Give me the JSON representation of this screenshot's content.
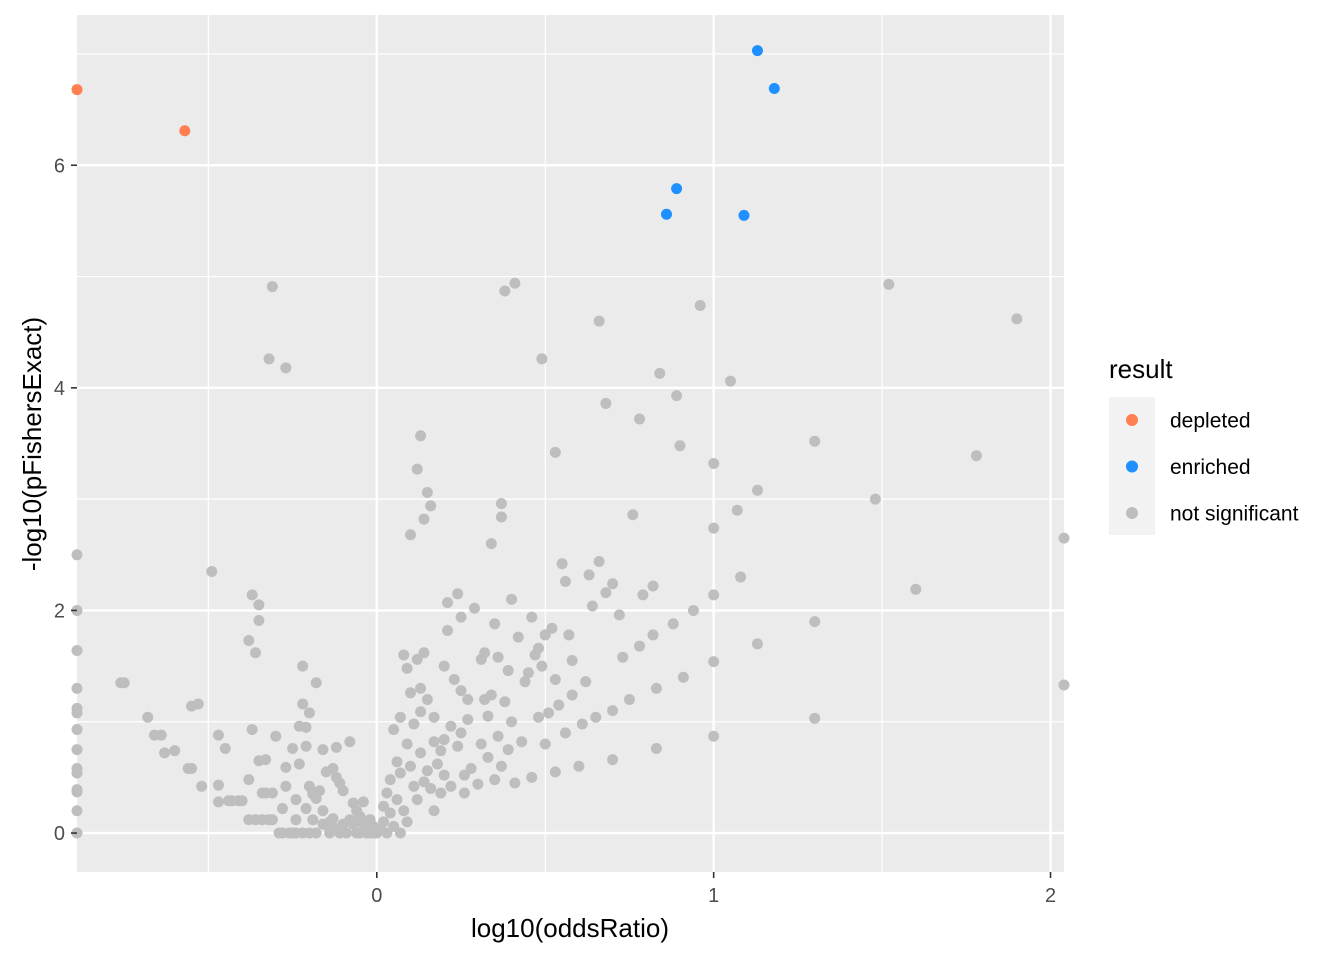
{
  "chart_data": {
    "type": "scatter",
    "title": "",
    "xlabel": "log10(oddsRatio)",
    "ylabel": "-log10(pFishersExact)",
    "xlim": [
      -0.89,
      2.04
    ],
    "ylim": [
      -0.35,
      7.35
    ],
    "x_ticks": [
      0,
      1,
      2
    ],
    "y_ticks": [
      0,
      2,
      4,
      6
    ],
    "grid": true,
    "legend_position": "right",
    "legend": {
      "title": "result",
      "entries": [
        "depleted",
        "enriched",
        "not significant"
      ]
    },
    "colors": {
      "depleted": "#ff7f50",
      "enriched": "#1e90ff",
      "not significant": "#bebebe",
      "panel_background": "#ebebeb",
      "gridline": "#ffffff"
    },
    "series": [
      {
        "name": "not significant",
        "points": [
          [
            -0.89,
            2.5
          ],
          [
            -0.89,
            2.0
          ],
          [
            -0.89,
            1.64
          ],
          [
            -0.89,
            1.3
          ],
          [
            -0.89,
            1.12
          ],
          [
            -0.89,
            1.08
          ],
          [
            -0.89,
            0.93
          ],
          [
            -0.89,
            0.75
          ],
          [
            -0.89,
            0.58
          ],
          [
            -0.89,
            0.54
          ],
          [
            -0.89,
            0.39
          ],
          [
            -0.89,
            0.37
          ],
          [
            -0.89,
            0.2
          ],
          [
            -0.89,
            0.0
          ],
          [
            -0.76,
            1.35
          ],
          [
            -0.75,
            1.35
          ],
          [
            -0.68,
            1.04
          ],
          [
            -0.66,
            0.88
          ],
          [
            -0.64,
            0.88
          ],
          [
            -0.63,
            0.72
          ],
          [
            -0.6,
            0.74
          ],
          [
            -0.56,
            0.58
          ],
          [
            -0.55,
            0.58
          ],
          [
            -0.55,
            1.14
          ],
          [
            -0.53,
            1.16
          ],
          [
            -0.52,
            0.42
          ],
          [
            -0.49,
            2.35
          ],
          [
            -0.47,
            0.88
          ],
          [
            -0.47,
            0.43
          ],
          [
            -0.47,
            0.28
          ],
          [
            -0.45,
            0.76
          ],
          [
            -0.44,
            0.29
          ],
          [
            -0.43,
            0.29
          ],
          [
            -0.41,
            0.29
          ],
          [
            -0.4,
            0.29
          ],
          [
            -0.38,
            0.48
          ],
          [
            -0.38,
            0.12
          ],
          [
            -0.38,
            1.73
          ],
          [
            -0.37,
            2.14
          ],
          [
            -0.37,
            0.93
          ],
          [
            -0.36,
            0.12
          ],
          [
            -0.36,
            1.62
          ],
          [
            -0.35,
            0.65
          ],
          [
            -0.35,
            2.05
          ],
          [
            -0.35,
            1.91
          ],
          [
            -0.34,
            0.36
          ],
          [
            -0.34,
            0.12
          ],
          [
            -0.33,
            0.36
          ],
          [
            -0.33,
            0.66
          ],
          [
            -0.32,
            0.12
          ],
          [
            -0.32,
            4.26
          ],
          [
            -0.31,
            0.12
          ],
          [
            -0.31,
            0.36
          ],
          [
            -0.3,
            0.87
          ],
          [
            -0.31,
            4.91
          ],
          [
            -0.29,
            0.0
          ],
          [
            -0.28,
            0.0
          ],
          [
            -0.28,
            0.22
          ],
          [
            -0.27,
            0.42
          ],
          [
            -0.27,
            4.18
          ],
          [
            -0.27,
            0.59
          ],
          [
            -0.26,
            0.0
          ],
          [
            -0.25,
            0.0
          ],
          [
            -0.25,
            0.76
          ],
          [
            -0.24,
            0.12
          ],
          [
            -0.24,
            0.0
          ],
          [
            -0.24,
            0.3
          ],
          [
            -0.23,
            0.62
          ],
          [
            -0.23,
            0.96
          ],
          [
            -0.22,
            1.16
          ],
          [
            -0.22,
            0.0
          ],
          [
            -0.22,
            1.5
          ],
          [
            -0.21,
            0.95
          ],
          [
            -0.21,
            0.22
          ],
          [
            -0.21,
            0.78
          ],
          [
            -0.2,
            0.0
          ],
          [
            -0.2,
            1.08
          ],
          [
            -0.2,
            0.42
          ],
          [
            -0.19,
            0.35
          ],
          [
            -0.19,
            0.37
          ],
          [
            -0.19,
            0.12
          ],
          [
            -0.18,
            0.0
          ],
          [
            -0.18,
            1.35
          ],
          [
            -0.18,
            0.31
          ],
          [
            -0.17,
            0.38
          ],
          [
            -0.16,
            0.75
          ],
          [
            -0.16,
            0.2
          ],
          [
            -0.16,
            0.08
          ],
          [
            -0.15,
            0.55
          ],
          [
            -0.15,
            0.07
          ],
          [
            -0.14,
            0.0
          ],
          [
            -0.14,
            0.1
          ],
          [
            -0.13,
            0.13
          ],
          [
            -0.13,
            0.58
          ],
          [
            -0.12,
            0.04
          ],
          [
            -0.12,
            0.5
          ],
          [
            -0.11,
            0.0
          ],
          [
            -0.11,
            0.45
          ],
          [
            -0.1,
            0.08
          ],
          [
            -0.1,
            0.38
          ],
          [
            -0.09,
            0.0
          ],
          [
            -0.08,
            0.12
          ],
          [
            -0.12,
            0.77
          ],
          [
            -0.08,
            0.82
          ],
          [
            -0.07,
            0.27
          ],
          [
            -0.07,
            0.08
          ],
          [
            -0.06,
            0.0
          ],
          [
            -0.06,
            0.2
          ],
          [
            -0.05,
            0.0
          ],
          [
            -0.05,
            0.15
          ],
          [
            -0.04,
            0.28
          ],
          [
            -0.04,
            0.08
          ],
          [
            -0.03,
            0.04
          ],
          [
            -0.03,
            0.0
          ],
          [
            -0.02,
            0.12
          ],
          [
            -0.02,
            0.0
          ],
          [
            -0.01,
            0.06
          ],
          [
            -0.01,
            0.0
          ],
          [
            0.0,
            0.0
          ],
          [
            0.01,
            0.04
          ],
          [
            0.02,
            0.1
          ],
          [
            0.02,
            0.24
          ],
          [
            0.03,
            0.0
          ],
          [
            0.03,
            0.36
          ],
          [
            0.04,
            0.48
          ],
          [
            0.04,
            0.18
          ],
          [
            0.05,
            0.06
          ],
          [
            0.05,
            0.93
          ],
          [
            0.06,
            0.64
          ],
          [
            0.06,
            0.3
          ],
          [
            0.07,
            0.0
          ],
          [
            0.07,
            0.54
          ],
          [
            0.07,
            1.04
          ],
          [
            0.08,
            1.6
          ],
          [
            0.08,
            0.2
          ],
          [
            0.09,
            0.8
          ],
          [
            0.09,
            1.48
          ],
          [
            0.09,
            0.1
          ],
          [
            0.1,
            1.26
          ],
          [
            0.1,
            0.6
          ],
          [
            0.1,
            2.68
          ],
          [
            0.11,
            0.98
          ],
          [
            0.11,
            0.42
          ],
          [
            0.12,
            3.27
          ],
          [
            0.12,
            1.56
          ],
          [
            0.12,
            0.3
          ],
          [
            0.13,
            1.3
          ],
          [
            0.13,
            1.09
          ],
          [
            0.13,
            0.72
          ],
          [
            0.13,
            3.57
          ],
          [
            0.14,
            1.62
          ],
          [
            0.14,
            0.46
          ],
          [
            0.14,
            2.82
          ],
          [
            0.15,
            3.06
          ],
          [
            0.15,
            1.2
          ],
          [
            0.15,
            0.56
          ],
          [
            0.16,
            2.94
          ],
          [
            0.16,
            0.4
          ],
          [
            0.17,
            0.82
          ],
          [
            0.17,
            1.04
          ],
          [
            0.17,
            0.2
          ],
          [
            0.18,
            0.62
          ],
          [
            0.19,
            0.36
          ],
          [
            0.19,
            0.74
          ],
          [
            0.2,
            0.52
          ],
          [
            0.2,
            0.84
          ],
          [
            0.2,
            1.5
          ],
          [
            0.21,
            1.82
          ],
          [
            0.21,
            2.07
          ],
          [
            0.22,
            0.96
          ],
          [
            0.22,
            0.42
          ],
          [
            0.23,
            1.38
          ],
          [
            0.24,
            2.15
          ],
          [
            0.24,
            0.78
          ],
          [
            0.25,
            0.9
          ],
          [
            0.25,
            1.28
          ],
          [
            0.25,
            1.94
          ],
          [
            0.26,
            0.52
          ],
          [
            0.26,
            0.36
          ],
          [
            0.27,
            1.2
          ],
          [
            0.27,
            1.02
          ],
          [
            0.28,
            0.58
          ],
          [
            0.29,
            2.02
          ],
          [
            0.3,
            0.44
          ],
          [
            0.31,
            1.56
          ],
          [
            0.31,
            0.8
          ],
          [
            0.32,
            1.2
          ],
          [
            0.32,
            1.62
          ],
          [
            0.33,
            1.05
          ],
          [
            0.33,
            0.68
          ],
          [
            0.34,
            2.6
          ],
          [
            0.34,
            1.24
          ],
          [
            0.35,
            0.48
          ],
          [
            0.35,
            1.88
          ],
          [
            0.36,
            0.87
          ],
          [
            0.36,
            1.58
          ],
          [
            0.37,
            0.6
          ],
          [
            0.37,
            2.84
          ],
          [
            0.37,
            2.96
          ],
          [
            0.38,
            1.18
          ],
          [
            0.38,
            4.87
          ],
          [
            0.39,
            0.75
          ],
          [
            0.39,
            1.46
          ],
          [
            0.4,
            2.1
          ],
          [
            0.4,
            1.0
          ],
          [
            0.41,
            4.94
          ],
          [
            0.41,
            0.45
          ],
          [
            0.42,
            1.76
          ],
          [
            0.43,
            0.82
          ],
          [
            0.44,
            1.36
          ],
          [
            0.45,
            1.44
          ],
          [
            0.46,
            1.94
          ],
          [
            0.46,
            0.5
          ],
          [
            0.47,
            1.6
          ],
          [
            0.48,
            1.04
          ],
          [
            0.48,
            1.66
          ],
          [
            0.49,
            1.5
          ],
          [
            0.49,
            4.26
          ],
          [
            0.5,
            0.8
          ],
          [
            0.5,
            1.78
          ],
          [
            0.51,
            1.08
          ],
          [
            0.52,
            1.84
          ],
          [
            0.53,
            3.42
          ],
          [
            0.53,
            0.55
          ],
          [
            0.53,
            1.38
          ],
          [
            0.54,
            1.15
          ],
          [
            0.55,
            2.42
          ],
          [
            0.56,
            0.9
          ],
          [
            0.56,
            2.26
          ],
          [
            0.57,
            1.78
          ],
          [
            0.58,
            1.24
          ],
          [
            0.58,
            1.55
          ],
          [
            0.6,
            0.6
          ],
          [
            0.61,
            0.98
          ],
          [
            0.62,
            1.36
          ],
          [
            0.63,
            2.32
          ],
          [
            0.64,
            2.04
          ],
          [
            0.65,
            1.04
          ],
          [
            0.66,
            4.6
          ],
          [
            0.66,
            2.44
          ],
          [
            0.68,
            3.86
          ],
          [
            0.68,
            2.16
          ],
          [
            0.7,
            1.1
          ],
          [
            0.7,
            2.24
          ],
          [
            0.7,
            0.66
          ],
          [
            0.72,
            1.96
          ],
          [
            0.73,
            1.58
          ],
          [
            0.75,
            1.2
          ],
          [
            0.76,
            2.86
          ],
          [
            0.78,
            3.72
          ],
          [
            0.78,
            1.68
          ],
          [
            0.79,
            2.14
          ],
          [
            0.82,
            2.22
          ],
          [
            0.82,
            1.78
          ],
          [
            0.83,
            0.76
          ],
          [
            0.83,
            1.3
          ],
          [
            0.84,
            4.13
          ],
          [
            0.88,
            1.88
          ],
          [
            0.89,
            3.93
          ],
          [
            0.9,
            3.48
          ],
          [
            0.91,
            1.4
          ],
          [
            0.94,
            2.0
          ],
          [
            0.96,
            4.74
          ],
          [
            1.0,
            3.32
          ],
          [
            1.0,
            2.74
          ],
          [
            1.0,
            2.14
          ],
          [
            1.0,
            1.54
          ],
          [
            1.0,
            0.87
          ],
          [
            1.05,
            4.06
          ],
          [
            1.07,
            2.9
          ],
          [
            1.08,
            2.3
          ],
          [
            1.13,
            3.08
          ],
          [
            1.13,
            1.7
          ],
          [
            1.3,
            3.52
          ],
          [
            1.3,
            1.9
          ],
          [
            1.3,
            1.03
          ],
          [
            1.48,
            3.0
          ],
          [
            1.52,
            4.93
          ],
          [
            1.6,
            2.19
          ],
          [
            1.78,
            3.39
          ],
          [
            1.9,
            4.62
          ],
          [
            2.04,
            2.65
          ],
          [
            2.04,
            1.33
          ]
        ]
      },
      {
        "name": "depleted",
        "points": [
          [
            -0.89,
            6.68
          ],
          [
            -0.57,
            6.31
          ]
        ]
      },
      {
        "name": "enriched",
        "points": [
          [
            1.13,
            7.03
          ],
          [
            1.18,
            6.69
          ],
          [
            0.89,
            5.79
          ],
          [
            0.86,
            5.56
          ],
          [
            1.09,
            5.55
          ]
        ]
      }
    ]
  }
}
